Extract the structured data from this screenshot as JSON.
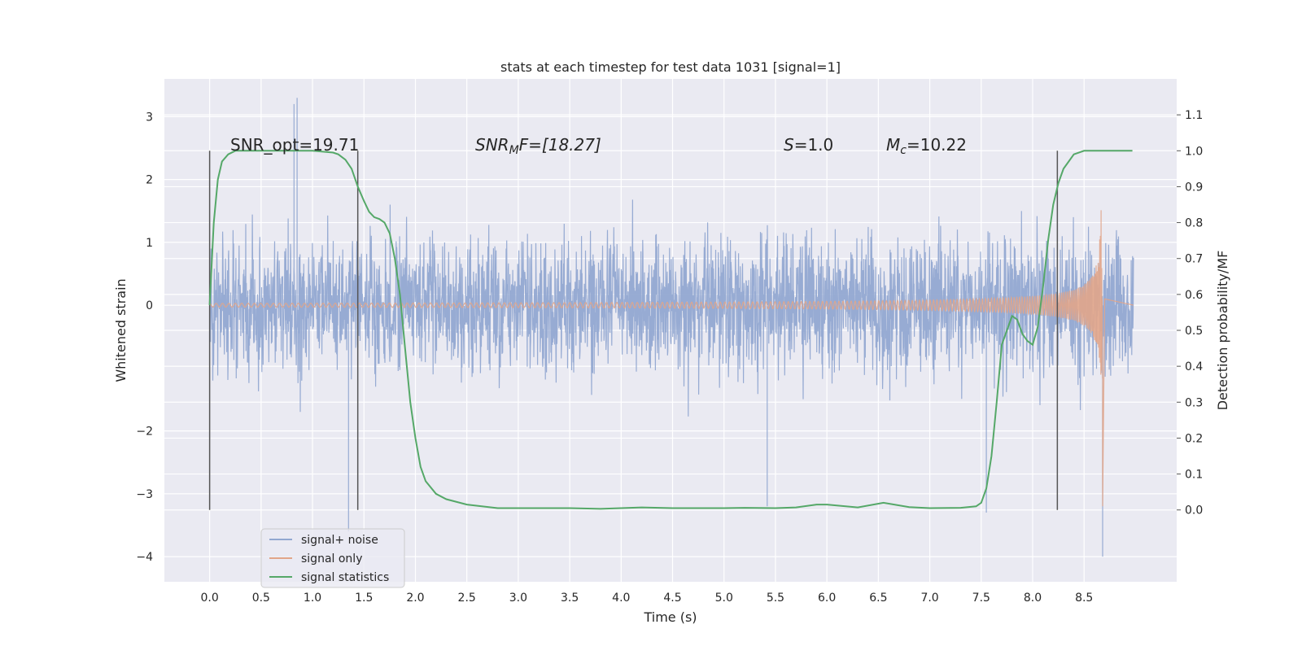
{
  "chart_data": {
    "type": "line",
    "title": "stats at each timestep for test data 1031 [signal=1]",
    "xlabel": "Time (s)",
    "ylabel": "Whitened strain",
    "ylabel_right": "Detection probability/MF",
    "xlim": [
      -0.44,
      9.4
    ],
    "ylim": [
      -4.4,
      3.6
    ],
    "ylim_right": [
      -0.2,
      1.2
    ],
    "grid": true,
    "x_ticks": [
      "0.0",
      "0.5",
      "1.0",
      "1.5",
      "2.0",
      "2.5",
      "3.0",
      "3.5",
      "4.0",
      "4.5",
      "5.0",
      "5.5",
      "6.0",
      "6.5",
      "7.0",
      "7.5",
      "8.0",
      "8.5"
    ],
    "y_ticks": [
      "3",
      "2",
      "1",
      "0",
      "−2",
      "−3",
      "−4"
    ],
    "y2_ticks": [
      "0.0",
      "0.1",
      "0.2",
      "0.3",
      "0.4",
      "0.5",
      "0.6",
      "0.7",
      "0.8",
      "0.9",
      "1.0",
      "1.1"
    ],
    "legend_position": "lower-left",
    "annotations": {
      "snr_opt": "SNR_opt=19.71",
      "snr_mf_main": "SNR",
      "snr_mf_sub": "M",
      "snr_mf_rest": "F=[18.27]",
      "s_main": "S",
      "s_rest": "=1.0",
      "mc_main": "M",
      "mc_sub": "c",
      "mc_rest": "=10.22"
    },
    "vertical_lines_x": [
      0.0,
      1.44,
      8.24
    ],
    "series": [
      {
        "name": "signal+ noise",
        "color": "#92a8d1",
        "description_range": [
          0.0,
          8.98
        ],
        "envelope_abs": 2.0,
        "peaks": [
          [
            0.82,
            3.2
          ],
          [
            0.85,
            3.3
          ],
          [
            1.35,
            -3.6
          ],
          [
            5.42,
            -3.2
          ],
          [
            7.55,
            -3.3
          ],
          [
            8.68,
            -4.0
          ]
        ]
      },
      {
        "name": "signal only",
        "color": "#e1a589",
        "chirp": {
          "t_merge": 8.68,
          "amp_start": 0.03,
          "amp_end": 2.2
        }
      },
      {
        "name": "signal statistics",
        "color": "#55a868",
        "x": [
          0.0,
          0.04,
          0.08,
          0.12,
          0.18,
          0.25,
          0.4,
          0.6,
          0.8,
          1.0,
          1.2,
          1.25,
          1.32,
          1.38,
          1.44,
          1.5,
          1.55,
          1.6,
          1.65,
          1.7,
          1.75,
          1.8,
          1.85,
          1.9,
          1.95,
          2.0,
          2.05,
          2.1,
          2.2,
          2.3,
          2.5,
          2.8,
          3.0,
          3.5,
          3.8,
          4.0,
          4.2,
          4.5,
          5.0,
          5.2,
          5.5,
          5.7,
          5.9,
          6.0,
          6.3,
          6.55,
          6.8,
          7.0,
          7.3,
          7.45,
          7.5,
          7.55,
          7.6,
          7.65,
          7.7,
          7.75,
          7.8,
          7.85,
          7.9,
          7.95,
          8.0,
          8.05,
          8.1,
          8.15,
          8.2,
          8.25,
          8.3,
          8.35,
          8.4,
          8.5,
          8.6,
          8.8,
          8.97
        ],
        "values": [
          0.57,
          0.8,
          0.92,
          0.97,
          0.99,
          1.0,
          1.0,
          1.0,
          1.0,
          1.0,
          0.995,
          0.99,
          0.975,
          0.95,
          0.9,
          0.86,
          0.83,
          0.815,
          0.81,
          0.8,
          0.77,
          0.7,
          0.6,
          0.45,
          0.3,
          0.2,
          0.12,
          0.08,
          0.045,
          0.03,
          0.015,
          0.005,
          0.005,
          0.005,
          0.003,
          0.005,
          0.007,
          0.005,
          0.005,
          0.006,
          0.005,
          0.007,
          0.015,
          0.015,
          0.007,
          0.02,
          0.008,
          0.005,
          0.006,
          0.01,
          0.02,
          0.06,
          0.15,
          0.3,
          0.46,
          0.5,
          0.54,
          0.53,
          0.49,
          0.47,
          0.46,
          0.51,
          0.62,
          0.75,
          0.85,
          0.91,
          0.95,
          0.97,
          0.99,
          1.0,
          1.0,
          1.0,
          1.0
        ]
      }
    ]
  }
}
